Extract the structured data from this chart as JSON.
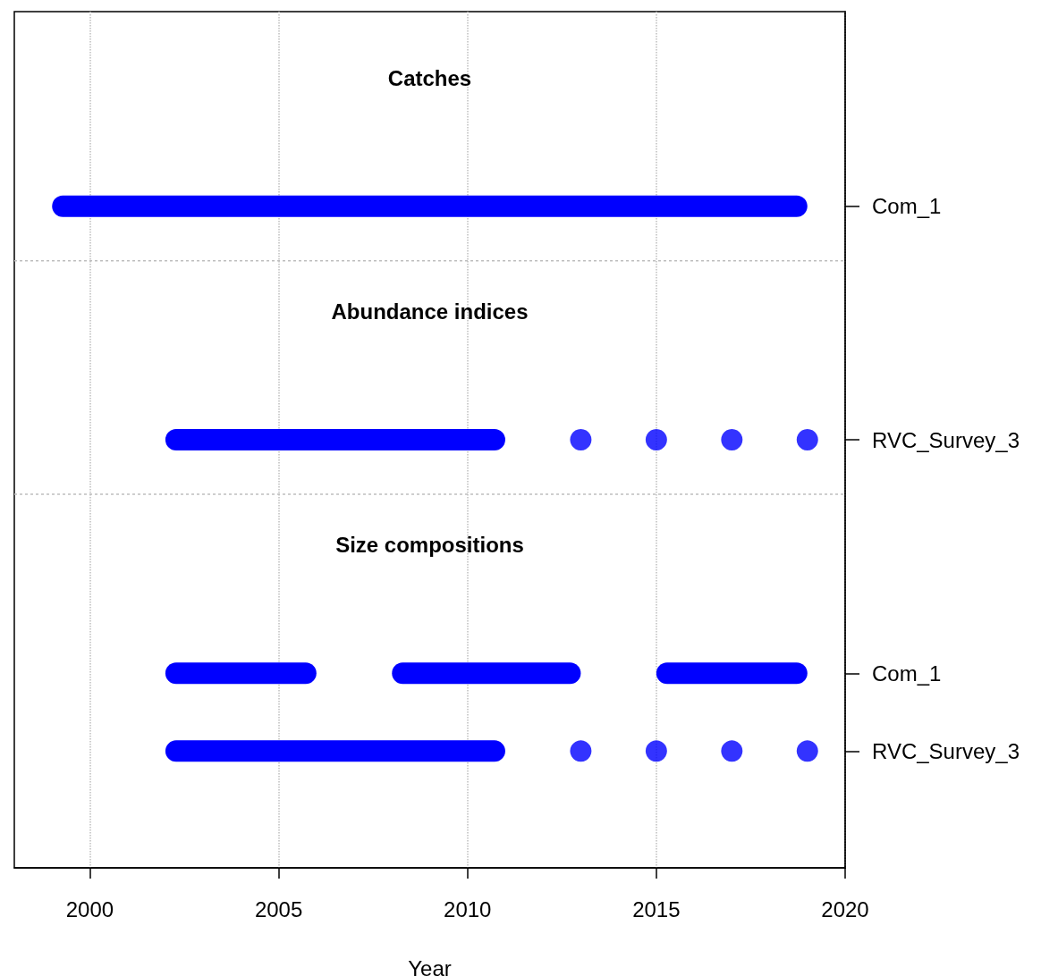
{
  "chart_data": {
    "type": "bar",
    "orientation": "horizontal",
    "xlabel": "Year",
    "xlim": [
      1998,
      2020
    ],
    "xticks": [
      2000,
      2005,
      2010,
      2015,
      2020
    ],
    "categories": [
      null,
      null,
      "Com_1",
      null,
      null,
      "RVC_Survey_3",
      null,
      null,
      "Com_1",
      "RVC_Survey_3",
      null
    ],
    "grid": "x",
    "marker": "circle",
    "series": [
      {
        "color": "#0000ff",
        "base": [
          null,
          null,
          1999,
          null,
          null,
          2002,
          null,
          null,
          2002,
          2002,
          null
        ],
        "values": [
          null,
          null,
          20,
          null,
          null,
          9,
          null,
          null,
          4,
          9,
          null
        ]
      },
      {
        "color": "#0000ff",
        "base": [
          null,
          null,
          null,
          null,
          null,
          null,
          null,
          null,
          2008,
          null,
          null
        ],
        "values": [
          null,
          null,
          null,
          null,
          null,
          null,
          null,
          null,
          5,
          null,
          null
        ]
      },
      {
        "color": "#0000ff",
        "base": [
          null,
          null,
          null,
          null,
          null,
          null,
          null,
          null,
          2015,
          null,
          null
        ],
        "values": [
          null,
          null,
          null,
          null,
          null,
          null,
          null,
          null,
          4,
          null,
          null
        ]
      },
      {
        "type": "scatter",
        "color": "#0000ff",
        "values": [
          null,
          null,
          null,
          null,
          null,
          2013,
          null,
          null,
          null,
          2013,
          null
        ]
      },
      {
        "type": "scatter",
        "color": "#0000ff",
        "values": [
          null,
          null,
          null,
          null,
          null,
          2015,
          null,
          null,
          null,
          2015,
          null
        ]
      },
      {
        "type": "scatter",
        "color": "#0000ff",
        "values": [
          null,
          null,
          null,
          null,
          null,
          2017,
          null,
          null,
          null,
          2017,
          null
        ]
      },
      {
        "type": "scatter",
        "color": "#0000ff",
        "values": [
          null,
          null,
          null,
          null,
          null,
          2019,
          null,
          null,
          null,
          2019,
          null
        ]
      }
    ],
    "annotations": [
      "Catches",
      "Abundance indices",
      "Size compositions"
    ]
  }
}
